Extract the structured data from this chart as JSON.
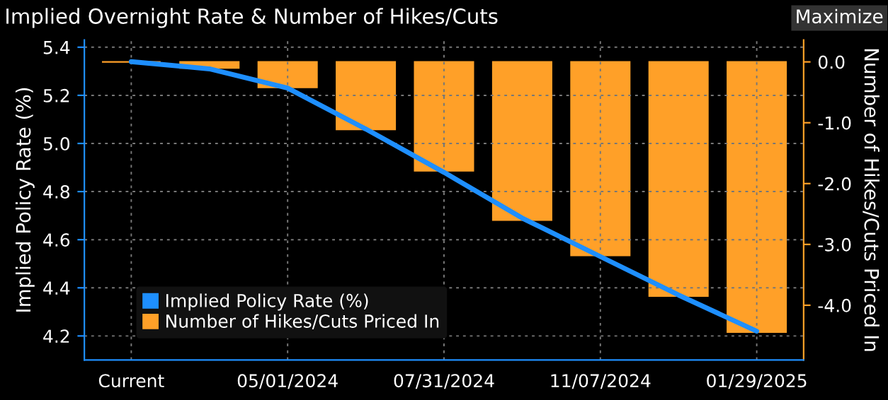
{
  "chart_data": {
    "type": "bar",
    "title": "Implied Overnight Rate & Number of Hikes/Cuts",
    "annotations": [
      "Maximize"
    ],
    "categories": [
      "Current",
      null,
      "05/01/2024",
      null,
      "07/31/2024",
      null,
      "11/07/2024",
      null,
      "01/29/2025"
    ],
    "ylabel": "Implied Policy Rate (%)",
    "y2label": "Number of Hikes/Cuts Priced In",
    "series": [
      {
        "name": "Implied Policy Rate (%)",
        "type": "line",
        "color": "#1e8fff",
        "values": [
          5.34,
          5.31,
          5.23,
          5.06,
          4.88,
          4.69,
          4.53,
          4.37,
          4.22
        ]
      },
      {
        "name": "Number of Hikes/Cuts Priced In",
        "axis": "y2",
        "color": "#ffa028",
        "values": [
          0.0,
          -0.1,
          -0.42,
          -1.11,
          -1.79,
          -2.6,
          -3.18,
          -3.85,
          -4.44
        ]
      }
    ],
    "ylim": [
      4.1,
      5.43
    ],
    "yticks": [
      {
        "value": 4.2,
        "label": "4.2"
      },
      {
        "value": 4.4,
        "label": "4.4"
      },
      {
        "value": 4.6,
        "label": "4.6"
      },
      {
        "value": 4.8,
        "label": "4.8"
      },
      {
        "value": 5.0,
        "label": "5.0"
      },
      {
        "value": 5.2,
        "label": "5.2"
      },
      {
        "value": 5.4,
        "label": "5.4"
      }
    ],
    "y2lim": [
      -4.9,
      0.36
    ],
    "y2ticks": [
      {
        "value": 0,
        "label": "0.0"
      },
      {
        "value": -1,
        "label": "-1.0"
      },
      {
        "value": -2,
        "label": "-2.0"
      },
      {
        "value": -3,
        "label": "-3.0"
      },
      {
        "value": -4,
        "label": "-4.0"
      }
    ],
    "grid": true,
    "legend": "bottom left"
  }
}
